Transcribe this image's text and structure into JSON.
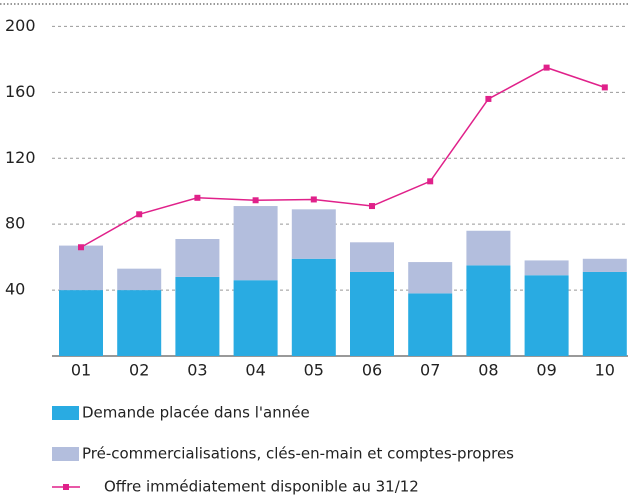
{
  "chart_data": {
    "type": "bar",
    "categories": [
      "01",
      "02",
      "03",
      "04",
      "05",
      "06",
      "07",
      "08",
      "09",
      "10"
    ],
    "series": [
      {
        "name": "Demande placée dans l'année",
        "color": "#29abe2",
        "values": [
          40,
          40,
          48,
          46,
          59,
          51,
          38,
          55,
          49,
          51
        ]
      },
      {
        "name": "Pré-commercialisations, clés-en-main et comptes-propres",
        "color": "#b3bedd",
        "values": [
          27,
          13,
          23,
          45,
          30,
          18,
          19,
          21,
          9,
          8
        ]
      },
      {
        "name": "Offre immédiatement disponible au 31/12",
        "color": "#e0218a",
        "type": "line",
        "values": [
          66,
          86,
          96,
          94.5,
          95,
          91,
          106,
          156,
          175,
          163
        ]
      }
    ],
    "ylim": [
      0,
      213
    ],
    "yticks": [
      40,
      80,
      120,
      160,
      200
    ],
    "grid": true,
    "stacked": true
  }
}
